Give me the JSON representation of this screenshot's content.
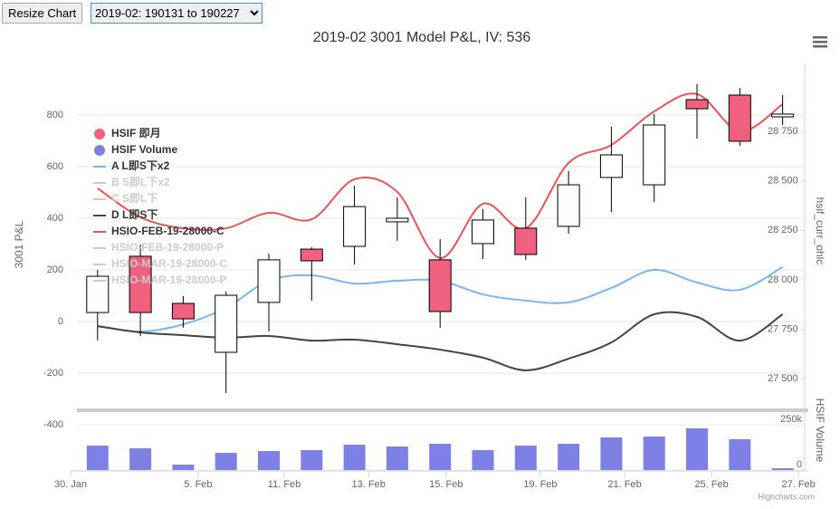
{
  "controls": {
    "button": "Resize Chart",
    "select": "2019-02: 190131 to 190227"
  },
  "chart_data": {
    "type": "candlestick",
    "title": "2019-02 3001 Model P&L, IV: 536",
    "x": [
      0,
      1,
      2,
      3,
      4,
      5,
      6,
      7,
      8,
      9,
      10,
      11,
      12,
      13,
      14,
      15,
      16
    ],
    "xlim": [
      -0.63,
      16.6
    ],
    "xticks": [
      {
        "value": -0.63,
        "label": "30. Jan"
      },
      {
        "value": 2.35,
        "label": "5. Feb"
      },
      {
        "value": 4.36,
        "label": "11. Feb"
      },
      {
        "value": 6.33,
        "label": "13. Feb"
      },
      {
        "value": 8.14,
        "label": "15. Feb"
      },
      {
        "value": 10.34,
        "label": "19. Feb"
      },
      {
        "value": 12.31,
        "label": "21. Feb"
      },
      {
        "value": 14.34,
        "label": "25. Feb"
      },
      {
        "value": 16.37,
        "label": "27. Feb"
      }
    ],
    "y_title": "3001 P&L",
    "ylim": [
      -600,
      1000
    ],
    "yticks": [
      -400,
      -200,
      0,
      200,
      400,
      600,
      800
    ],
    "grid": true,
    "y2_title": "hsif_curr_ohlc",
    "y2lim": [
      27355,
      29093
    ],
    "y2ticks": [
      {
        "value": 27500,
        "label": "27 500"
      },
      {
        "value": 27750,
        "label": "27 750"
      },
      {
        "value": 28000,
        "label": "28 000"
      },
      {
        "value": 28250,
        "label": "28 250"
      },
      {
        "value": 28500,
        "label": "28 500"
      },
      {
        "value": 28750,
        "label": "28 750"
      }
    ],
    "y3_title": "HSIF Volume",
    "y3lim": [
      0,
      320000
    ],
    "y3ticks": [
      0,
      {
        "value": 250000,
        "label": "250k"
      }
    ],
    "ohlc": {
      "name": "HSIF 即月",
      "color": "#f0607f",
      "up_color": "#ffffff",
      "open": [
        27835,
        28119,
        27881,
        27634,
        27886,
        28155,
        28169,
        28293,
        28101,
        28183,
        28261,
        28270,
        28517,
        28480,
        28910,
        28933,
        28823
      ],
      "high": [
        28050,
        28178,
        27918,
        27941,
        28133,
        28165,
        28476,
        28416,
        28206,
        28357,
        28416,
        28549,
        28773,
        28837,
        28988,
        28969,
        28933
      ],
      "low": [
        27694,
        27716,
        27758,
        27428,
        27739,
        27895,
        28078,
        28197,
        27758,
        28105,
        28101,
        28233,
        28343,
        28393,
        28713,
        28677,
        28782
      ],
      "close": [
        28018,
        27835,
        27803,
        27922,
        28101,
        28096,
        28370,
        28311,
        27840,
        28302,
        28128,
        28480,
        28631,
        28782,
        28864,
        28700,
        28837
      ]
    },
    "volume": {
      "name": "HSIF Volume",
      "color": "#7f80e6",
      "values": [
        135000,
        120000,
        30000,
        95000,
        105000,
        110000,
        140000,
        130000,
        145000,
        110000,
        135000,
        145000,
        180000,
        185000,
        230000,
        170000,
        10000
      ]
    },
    "series": [
      {
        "name": "A L即S下x2",
        "color": "#7cb5ec",
        "values": [
          -18,
          -39,
          -11,
          53,
          158,
          179,
          147,
          158,
          158,
          105,
          81,
          74,
          130,
          200,
          151,
          123,
          211
        ]
      },
      {
        "name": "D L即S下",
        "color": "#434348",
        "values": [
          -18,
          -42,
          -53,
          -63,
          -56,
          -74,
          -70,
          -88,
          -109,
          -140,
          -189,
          -144,
          -81,
          28,
          18,
          -74,
          28
        ]
      },
      {
        "name": "HSIO-FEB-19-28000-C",
        "color": "#e8545a",
        "values": [
          516,
          404,
          361,
          361,
          421,
          396,
          551,
          502,
          246,
          456,
          361,
          614,
          684,
          814,
          881,
          737,
          842
        ]
      }
    ],
    "legend": [
      {
        "name": "HSIF 即月",
        "color": "#f0607f",
        "marker": "circle",
        "visible": true
      },
      {
        "name": "HSIF Volume",
        "color": "#7f80e6",
        "marker": "circle",
        "visible": true
      },
      {
        "name": "A L即S下x2",
        "color": "#7cb5ec",
        "marker": "line",
        "visible": true
      },
      {
        "name": "B S即L下x2",
        "color": "#cccccc",
        "marker": "line",
        "visible": false
      },
      {
        "name": "C S即L下",
        "color": "#cccccc",
        "marker": "line",
        "visible": false
      },
      {
        "name": "D L即S下",
        "color": "#434348",
        "marker": "line",
        "visible": true
      },
      {
        "name": "HSIO-FEB-19-28000-C",
        "color": "#e8545a",
        "marker": "line",
        "visible": true
      },
      {
        "name": "HSIO-FEB-19-28000-P",
        "color": "#cccccc",
        "marker": "line",
        "visible": false
      },
      {
        "name": "HSIO-MAR-19-28000-C",
        "color": "#cccccc",
        "marker": "line",
        "visible": false
      },
      {
        "name": "HSIO-MAR-19-28000-P",
        "color": "#cccccc",
        "marker": "line",
        "visible": false
      }
    ],
    "credits": "Highcharts.com"
  }
}
